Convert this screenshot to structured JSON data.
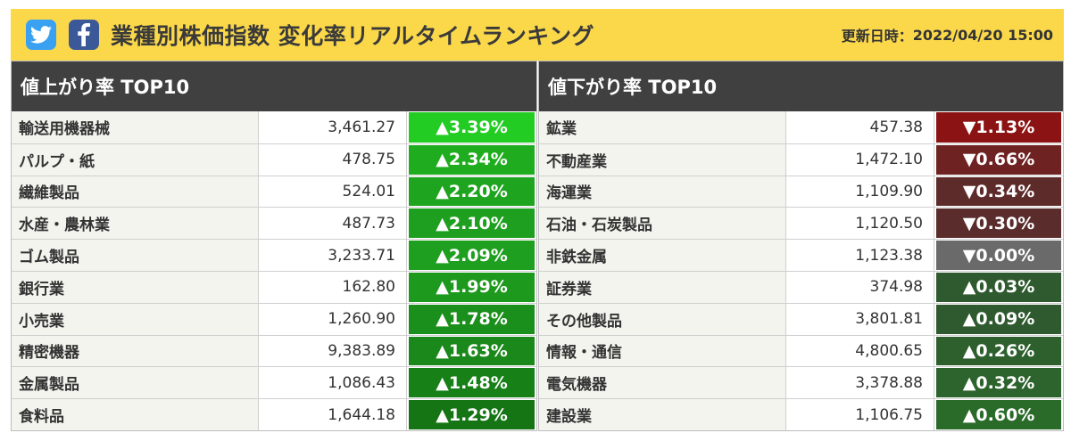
{
  "header": {
    "title": "業種別株価指数 変化率リアルタイムランキング",
    "updated_label": "更新日時：",
    "updated_value": "2022/04/20 15:00",
    "colors": {
      "bar": "#fbd84a",
      "twitter": "#3aa1f2",
      "facebook": "#3b5998"
    }
  },
  "gainers": {
    "heading": "値上がり率 TOP10",
    "rows": [
      {
        "name": "輸送用機器械",
        "value": "3,461.27",
        "change": "▲3.39%",
        "color": "#22cc22"
      },
      {
        "name": "パルプ・紙",
        "value": "478.75",
        "change": "▲2.34%",
        "color": "#1fac1f"
      },
      {
        "name": "繊維製品",
        "value": "524.01",
        "change": "▲2.20%",
        "color": "#1fa41f"
      },
      {
        "name": "水産・農林業",
        "value": "487.73",
        "change": "▲2.10%",
        "color": "#1f9f1f"
      },
      {
        "name": "ゴム製品",
        "value": "3,233.71",
        "change": "▲2.09%",
        "color": "#1f9f1f"
      },
      {
        "name": "銀行業",
        "value": "162.80",
        "change": "▲1.99%",
        "color": "#1d991d"
      },
      {
        "name": "小売業",
        "value": "1,260.90",
        "change": "▲1.78%",
        "color": "#1b8f1b"
      },
      {
        "name": "精密機器",
        "value": "9,383.89",
        "change": "▲1.63%",
        "color": "#1a881a"
      },
      {
        "name": "金属製品",
        "value": "1,086.43",
        "change": "▲1.48%",
        "color": "#178017"
      },
      {
        "name": "食料品",
        "value": "1,644.18",
        "change": "▲1.29%",
        "color": "#157515"
      }
    ]
  },
  "losers": {
    "heading": "値下がり率 TOP10",
    "rows": [
      {
        "name": "鉱業",
        "value": "457.38",
        "change": "▼1.13%",
        "color": "#8b1313"
      },
      {
        "name": "不動産業",
        "value": "1,472.10",
        "change": "▼0.66%",
        "color": "#6e2222"
      },
      {
        "name": "海運業",
        "value": "1,109.90",
        "change": "▼0.34%",
        "color": "#5e2b2b"
      },
      {
        "name": "石油・石炭製品",
        "value": "1,120.50",
        "change": "▼0.30%",
        "color": "#5a2c2c"
      },
      {
        "name": "非鉄金属",
        "value": "1,123.38",
        "change": "▼0.00%",
        "color": "#6a6a6a"
      },
      {
        "name": "証券業",
        "value": "374.98",
        "change": "▲0.03%",
        "color": "#2f5a2f"
      },
      {
        "name": "その他製品",
        "value": "3,801.81",
        "change": "▲0.09%",
        "color": "#2f5a2f"
      },
      {
        "name": "情報・通信",
        "value": "4,800.65",
        "change": "▲0.26%",
        "color": "#2e602e"
      },
      {
        "name": "電気機器",
        "value": "3,378.88",
        "change": "▲0.32%",
        "color": "#2d632d"
      },
      {
        "name": "建設業",
        "value": "1,106.75",
        "change": "▲0.60%",
        "color": "#2a6b2a"
      }
    ]
  }
}
